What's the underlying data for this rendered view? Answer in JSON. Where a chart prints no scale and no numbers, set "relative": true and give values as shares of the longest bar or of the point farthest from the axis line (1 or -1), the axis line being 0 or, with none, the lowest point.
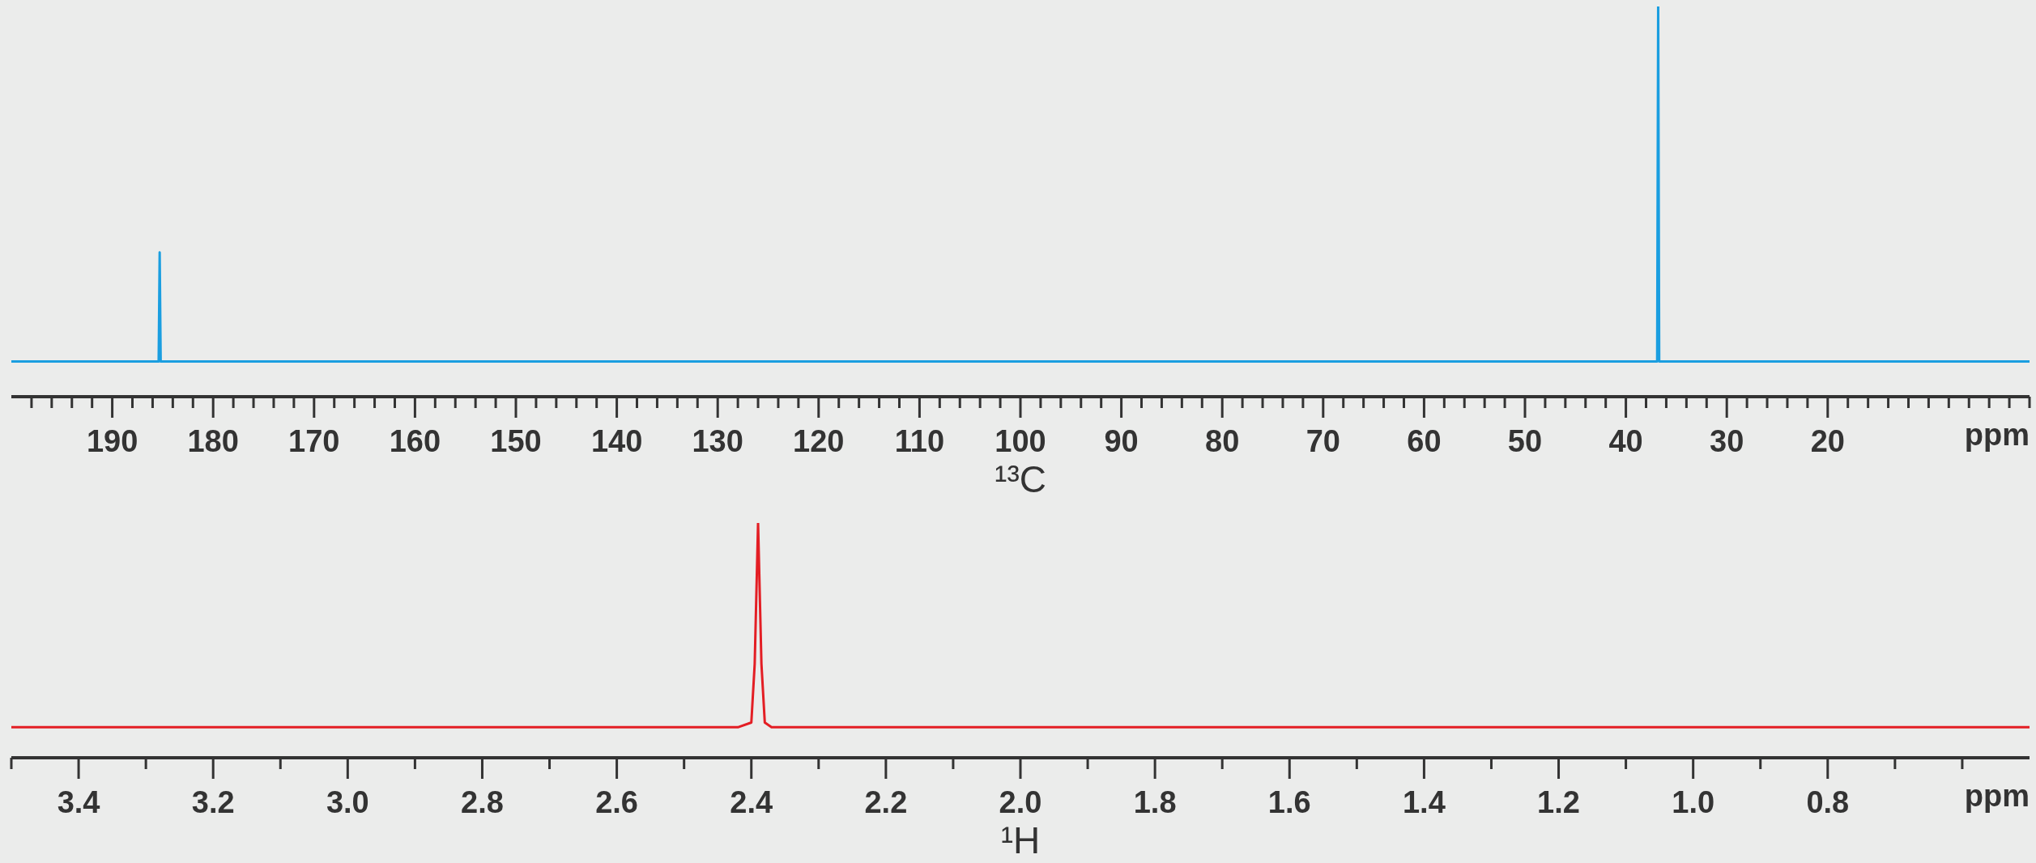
{
  "chart_data": [
    {
      "type": "line",
      "title": "¹³C",
      "xlabel": "ppm",
      "relative": true,
      "color": "#1a9ee0",
      "x": [
        200,
        185.4,
        185.3,
        185.2,
        36.9,
        36.8,
        36.7,
        0
      ],
      "values": [
        0.09,
        0.09,
        0.37,
        0.09,
        0.09,
        1,
        0.09,
        0.09
      ],
      "xlim": [
        200,
        0
      ],
      "xticks": [
        {
          "value": 198,
          "label": null
        },
        {
          "value": 196,
          "label": null
        },
        {
          "value": 194,
          "label": null
        },
        {
          "value": 192,
          "label": null
        },
        190,
        {
          "value": 188,
          "label": null
        },
        {
          "value": 186,
          "label": null
        },
        {
          "value": 184,
          "label": null
        },
        {
          "value": 182,
          "label": null
        },
        180,
        {
          "value": 178,
          "label": null
        },
        {
          "value": 176,
          "label": null
        },
        {
          "value": 174,
          "label": null
        },
        {
          "value": 172,
          "label": null
        },
        170,
        {
          "value": 168,
          "label": null
        },
        {
          "value": 166,
          "label": null
        },
        {
          "value": 164,
          "label": null
        },
        {
          "value": 162,
          "label": null
        },
        160,
        {
          "value": 158,
          "label": null
        },
        {
          "value": 156,
          "label": null
        },
        {
          "value": 154,
          "label": null
        },
        {
          "value": 152,
          "label": null
        },
        150,
        {
          "value": 148,
          "label": null
        },
        {
          "value": 146,
          "label": null
        },
        {
          "value": 144,
          "label": null
        },
        {
          "value": 142,
          "label": null
        },
        140,
        {
          "value": 138,
          "label": null
        },
        {
          "value": 136,
          "label": null
        },
        {
          "value": 134,
          "label": null
        },
        {
          "value": 132,
          "label": null
        },
        130,
        {
          "value": 128,
          "label": null
        },
        {
          "value": 126,
          "label": null
        },
        {
          "value": 124,
          "label": null
        },
        {
          "value": 122,
          "label": null
        },
        120,
        {
          "value": 118,
          "label": null
        },
        {
          "value": 116,
          "label": null
        },
        {
          "value": 114,
          "label": null
        },
        {
          "value": 112,
          "label": null
        },
        110,
        {
          "value": 108,
          "label": null
        },
        {
          "value": 106,
          "label": null
        },
        {
          "value": 104,
          "label": null
        },
        {
          "value": 102,
          "label": null
        },
        100,
        {
          "value": 98,
          "label": null
        },
        {
          "value": 96,
          "label": null
        },
        {
          "value": 94,
          "label": null
        },
        {
          "value": 92,
          "label": null
        },
        90,
        {
          "value": 88,
          "label": null
        },
        {
          "value": 86,
          "label": null
        },
        {
          "value": 84,
          "label": null
        },
        {
          "value": 82,
          "label": null
        },
        80,
        {
          "value": 78,
          "label": null
        },
        {
          "value": 76,
          "label": null
        },
        {
          "value": 74,
          "label": null
        },
        {
          "value": 72,
          "label": null
        },
        70,
        {
          "value": 68,
          "label": null
        },
        {
          "value": 66,
          "label": null
        },
        {
          "value": 64,
          "label": null
        },
        {
          "value": 62,
          "label": null
        },
        60,
        {
          "value": 58,
          "label": null
        },
        {
          "value": 56,
          "label": null
        },
        {
          "value": 54,
          "label": null
        },
        {
          "value": 52,
          "label": null
        },
        50,
        {
          "value": 48,
          "label": null
        },
        {
          "value": 46,
          "label": null
        },
        {
          "value": 44,
          "label": null
        },
        {
          "value": 42,
          "label": null
        },
        40,
        {
          "value": 38,
          "label": null
        },
        {
          "value": 36,
          "label": null
        },
        {
          "value": 34,
          "label": null
        },
        {
          "value": 32,
          "label": null
        },
        30,
        {
          "value": 28,
          "label": null
        },
        {
          "value": 26,
          "label": null
        },
        {
          "value": 24,
          "label": null
        },
        {
          "value": 22,
          "label": null
        },
        20,
        {
          "value": 18,
          "label": null
        },
        {
          "value": 16,
          "label": null
        },
        {
          "value": 14,
          "label": null
        },
        {
          "value": 12,
          "label": null
        },
        {
          "value": 10,
          "label": null
        },
        {
          "value": 8,
          "label": null
        },
        {
          "value": 6,
          "label": null
        },
        {
          "value": 4,
          "label": null
        },
        {
          "value": 2,
          "label": null
        },
        {
          "value": 0,
          "label": null
        }
      ]
    },
    {
      "type": "line",
      "title": "¹H",
      "xlabel": "ppm",
      "relative": true,
      "color": "#e31e24",
      "x": [
        3.5,
        2.42,
        2.4,
        2.395,
        2.39,
        2.385,
        2.38,
        2.37,
        0.5
      ],
      "values": [
        0.13,
        0.13,
        0.15,
        0.4,
        1,
        0.4,
        0.15,
        0.13,
        0.13
      ],
      "xlim": [
        3.5,
        0.5
      ],
      "xticks": [
        {
          "value": 3.5,
          "label": null
        },
        3.4,
        {
          "value": 3.3,
          "label": null
        },
        3.2,
        {
          "value": 3.1,
          "label": null
        },
        {
          "value": 3.0,
          "label": "3.0"
        },
        {
          "value": 2.9,
          "label": null
        },
        2.8,
        {
          "value": 2.7,
          "label": null
        },
        2.6,
        {
          "value": 2.5,
          "label": null
        },
        2.4,
        {
          "value": 2.3,
          "label": null
        },
        2.2,
        {
          "value": 2.1,
          "label": null
        },
        {
          "value": 2.0,
          "label": "2.0"
        },
        {
          "value": 1.9,
          "label": null
        },
        1.8,
        {
          "value": 1.7,
          "label": null
        },
        1.6,
        {
          "value": 1.5,
          "label": null
        },
        1.4,
        {
          "value": 1.3,
          "label": null
        },
        1.2,
        {
          "value": 1.1,
          "label": null
        },
        {
          "value": 1.0,
          "label": "1.0"
        },
        {
          "value": 0.9,
          "label": null
        },
        0.8,
        {
          "value": 0.7,
          "label": null
        },
        {
          "value": 0.6,
          "label": null
        }
      ]
    }
  ]
}
